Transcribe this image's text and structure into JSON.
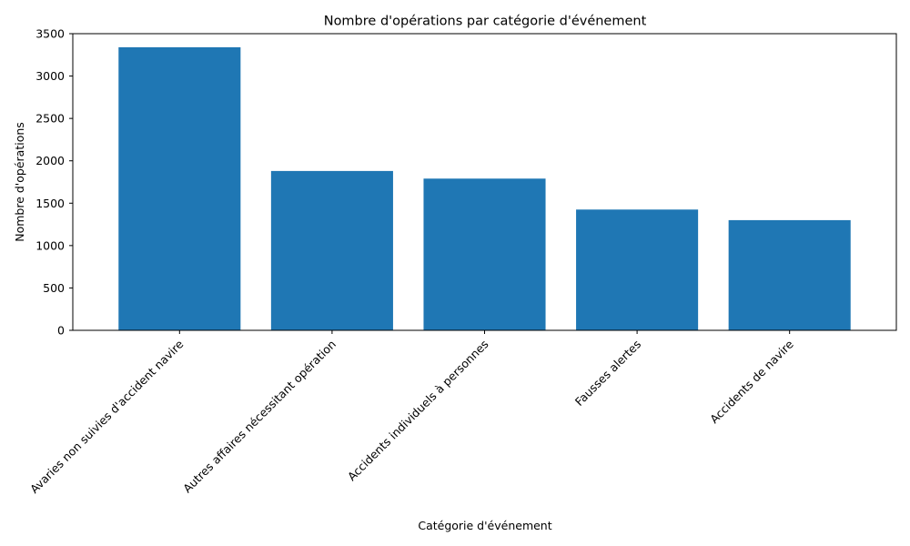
{
  "chart_data": {
    "type": "bar",
    "title": "Nombre d'opérations par catégorie d'événement",
    "xlabel": "Catégorie d'événement",
    "ylabel": "Nombre d'opérations",
    "categories": [
      "Avaries non suivies d'accident navire",
      "Autres affaires nécessitant opération",
      "Accidents individuels à personnes",
      "Fausses alertes",
      "Accidents de navire"
    ],
    "values": [
      3340,
      1880,
      1790,
      1425,
      1300
    ],
    "ylim": [
      0,
      3500
    ],
    "yticks": [
      0,
      500,
      1000,
      1500,
      2000,
      2500,
      3000,
      3500
    ],
    "bar_color": "#1f77b4",
    "grid": false,
    "legend": "none"
  }
}
